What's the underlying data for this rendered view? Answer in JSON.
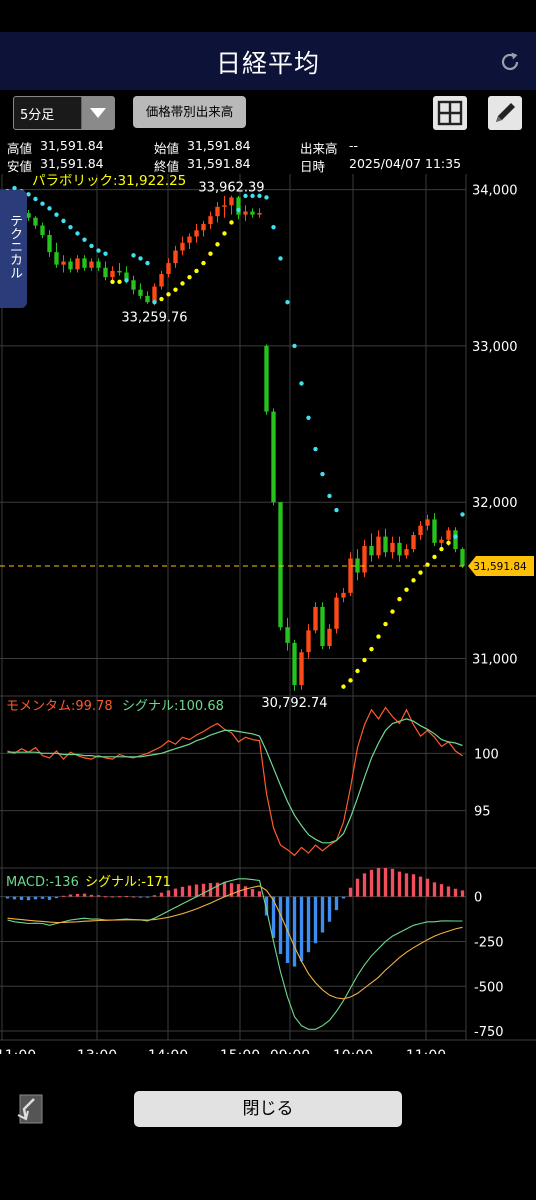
{
  "header": {
    "title": "日経平均"
  },
  "toolbar": {
    "interval": "5分足",
    "volume_button": "価格帯別出来高"
  },
  "info": {
    "high_label": "高値",
    "high_value": "31,591.84",
    "open_label": "始値",
    "open_value": "31,591.84",
    "volume_label": "出来高",
    "volume_value": "--",
    "low_label": "安値",
    "low_value": "31,591.84",
    "close_label": "終値",
    "close_value": "31,591.84",
    "time_label": "日時",
    "time_value": "2025/04/07 11:35"
  },
  "side_tab": "テクニカル",
  "footer": {
    "close_button": "閉じる"
  },
  "colors": {
    "up": "#ff4a18",
    "down": "#28c21e",
    "sar_up": "#ffff00",
    "sar_down": "#3fe0f0",
    "current": "#ffc107",
    "momentum": "#ff5a2a",
    "signal": "#6fd88f",
    "hist_up": "#f24e5e",
    "hist_down": "#3d8ef0"
  },
  "chart_data": {
    "type": "candlestick",
    "price": {
      "ylim": [
        30760,
        34100
      ],
      "yticks": [
        "34,000",
        "33,000",
        "32,000",
        "31,000"
      ],
      "ytick_values": [
        34000,
        33000,
        32000,
        31000
      ],
      "xlabels": [
        "11:00",
        "13:00",
        "14:00",
        "15:00",
        "09:00",
        "10:00",
        "11:00"
      ],
      "indicator_label": "パラボリック:31,922.25",
      "current_price": 31591.84,
      "current_label": "31,591.84",
      "annotations": [
        {
          "text": "33,962.39",
          "value": 33962.39,
          "index": 32
        },
        {
          "text": "33,259.76",
          "value": 33259.76,
          "index": 21
        },
        {
          "text": "30,792.74",
          "value": 30792.74,
          "index": 41
        }
      ],
      "candles": [
        {
          "o": 33960,
          "h": 34000,
          "l": 33930,
          "c": 33940,
          "sar": 33990
        },
        {
          "o": 33940,
          "h": 33960,
          "l": 33880,
          "c": 33890,
          "sar": 34010
        },
        {
          "o": 33890,
          "h": 33900,
          "l": 33830,
          "c": 33850,
          "sar": 33990
        },
        {
          "o": 33850,
          "h": 33870,
          "l": 33800,
          "c": 33820,
          "sar": 33970
        },
        {
          "o": 33820,
          "h": 33830,
          "l": 33750,
          "c": 33770,
          "sar": 33940
        },
        {
          "o": 33770,
          "h": 33790,
          "l": 33690,
          "c": 33710,
          "sar": 33910
        },
        {
          "o": 33710,
          "h": 33740,
          "l": 33570,
          "c": 33600,
          "sar": 33880
        },
        {
          "o": 33600,
          "h": 33660,
          "l": 33500,
          "c": 33520,
          "sar": 33840
        },
        {
          "o": 33520,
          "h": 33580,
          "l": 33470,
          "c": 33540,
          "sar": 33800
        },
        {
          "o": 33540,
          "h": 33560,
          "l": 33470,
          "c": 33490,
          "sar": 33760
        },
        {
          "o": 33490,
          "h": 33580,
          "l": 33470,
          "c": 33560,
          "sar": 33720
        },
        {
          "o": 33560,
          "h": 33580,
          "l": 33480,
          "c": 33500,
          "sar": 33680
        },
        {
          "o": 33500,
          "h": 33560,
          "l": 33480,
          "c": 33540,
          "sar": 33640
        },
        {
          "o": 33540,
          "h": 33560,
          "l": 33480,
          "c": 33500,
          "sar": 33610
        },
        {
          "o": 33500,
          "h": 33540,
          "l": 33420,
          "c": 33440,
          "sar": 33590
        },
        {
          "o": 33440,
          "h": 33510,
          "l": 33410,
          "c": 33480,
          "sar": 33410
        },
        {
          "o": 33480,
          "h": 33530,
          "l": 33450,
          "c": 33470,
          "sar": 33410
        },
        {
          "o": 33470,
          "h": 33510,
          "l": 33400,
          "c": 33420,
          "sar": 33420
        },
        {
          "o": 33420,
          "h": 33450,
          "l": 33330,
          "c": 33360,
          "sar": 33580
        },
        {
          "o": 33360,
          "h": 33400,
          "l": 33300,
          "c": 33320,
          "sar": 33560
        },
        {
          "o": 33320,
          "h": 33350,
          "l": 33270,
          "c": 33280,
          "sar": 33530
        },
        {
          "o": 33280,
          "h": 33400,
          "l": 33260,
          "c": 33380,
          "sar": 33280
        },
        {
          "o": 33380,
          "h": 33480,
          "l": 33360,
          "c": 33460,
          "sar": 33300
        },
        {
          "o": 33460,
          "h": 33560,
          "l": 33440,
          "c": 33530,
          "sar": 33330
        },
        {
          "o": 33530,
          "h": 33640,
          "l": 33500,
          "c": 33610,
          "sar": 33360
        },
        {
          "o": 33610,
          "h": 33700,
          "l": 33580,
          "c": 33660,
          "sar": 33400
        },
        {
          "o": 33660,
          "h": 33720,
          "l": 33620,
          "c": 33700,
          "sar": 33440
        },
        {
          "o": 33700,
          "h": 33780,
          "l": 33660,
          "c": 33740,
          "sar": 33480
        },
        {
          "o": 33740,
          "h": 33800,
          "l": 33700,
          "c": 33780,
          "sar": 33530
        },
        {
          "o": 33780,
          "h": 33860,
          "l": 33750,
          "c": 33830,
          "sar": 33590
        },
        {
          "o": 33830,
          "h": 33920,
          "l": 33790,
          "c": 33890,
          "sar": 33650
        },
        {
          "o": 33890,
          "h": 33960,
          "l": 33820,
          "c": 33900,
          "sar": 33720
        },
        {
          "o": 33900,
          "h": 33962,
          "l": 33840,
          "c": 33950,
          "sar": 33790
        },
        {
          "o": 33950,
          "h": 33960,
          "l": 33810,
          "c": 33840,
          "sar": 33870
        },
        {
          "o": 33840,
          "h": 33900,
          "l": 33800,
          "c": 33860,
          "sar": 33960
        },
        {
          "o": 33860,
          "h": 33880,
          "l": 33820,
          "c": 33840,
          "sar": 33960
        },
        {
          "o": 33840,
          "h": 33880,
          "l": 33820,
          "c": 33850,
          "sar": 33960
        },
        {
          "o": 33000,
          "h": 33010,
          "l": 32560,
          "c": 32580,
          "sar": 33950
        },
        {
          "o": 32580,
          "h": 32600,
          "l": 31980,
          "c": 32000,
          "sar": 33760
        },
        {
          "o": 32000,
          "h": 32000,
          "l": 31180,
          "c": 31200,
          "sar": 33560
        },
        {
          "o": 31200,
          "h": 31260,
          "l": 31050,
          "c": 31100,
          "sar": 33280
        },
        {
          "o": 31100,
          "h": 31120,
          "l": 30793,
          "c": 30830,
          "sar": 33000
        },
        {
          "o": 30830,
          "h": 31060,
          "l": 30800,
          "c": 31040,
          "sar": 32760
        },
        {
          "o": 31040,
          "h": 31220,
          "l": 31000,
          "c": 31180,
          "sar": 32540
        },
        {
          "o": 31180,
          "h": 31360,
          "l": 31160,
          "c": 31330,
          "sar": 32340
        },
        {
          "o": 31330,
          "h": 31360,
          "l": 31060,
          "c": 31080,
          "sar": 32180
        },
        {
          "o": 31080,
          "h": 31220,
          "l": 31060,
          "c": 31190,
          "sar": 32040
        },
        {
          "o": 31190,
          "h": 31420,
          "l": 31160,
          "c": 31390,
          "sar": 31950
        },
        {
          "o": 31390,
          "h": 31450,
          "l": 31360,
          "c": 31420,
          "sar": 30820
        },
        {
          "o": 31420,
          "h": 31680,
          "l": 31400,
          "c": 31640,
          "sar": 30860
        },
        {
          "o": 31640,
          "h": 31700,
          "l": 31500,
          "c": 31550,
          "sar": 30920
        },
        {
          "o": 31550,
          "h": 31760,
          "l": 31520,
          "c": 31720,
          "sar": 30990
        },
        {
          "o": 31720,
          "h": 31800,
          "l": 31620,
          "c": 31660,
          "sar": 31060
        },
        {
          "o": 31660,
          "h": 31820,
          "l": 31640,
          "c": 31780,
          "sar": 31140
        },
        {
          "o": 31780,
          "h": 31830,
          "l": 31650,
          "c": 31680,
          "sar": 31220
        },
        {
          "o": 31680,
          "h": 31780,
          "l": 31640,
          "c": 31740,
          "sar": 31300
        },
        {
          "o": 31740,
          "h": 31780,
          "l": 31620,
          "c": 31660,
          "sar": 31380
        },
        {
          "o": 31660,
          "h": 31730,
          "l": 31640,
          "c": 31700,
          "sar": 31440
        },
        {
          "o": 31700,
          "h": 31810,
          "l": 31680,
          "c": 31790,
          "sar": 31500
        },
        {
          "o": 31790,
          "h": 31880,
          "l": 31760,
          "c": 31850,
          "sar": 31550
        },
        {
          "o": 31850,
          "h": 31920,
          "l": 31820,
          "c": 31890,
          "sar": 31600
        },
        {
          "o": 31890,
          "h": 31930,
          "l": 31720,
          "c": 31740,
          "sar": 31650
        },
        {
          "o": 31740,
          "h": 31780,
          "l": 31700,
          "c": 31760,
          "sar": 31700
        },
        {
          "o": 31760,
          "h": 31840,
          "l": 31720,
          "c": 31820,
          "sar": 31740
        },
        {
          "o": 31820,
          "h": 31840,
          "l": 31680,
          "c": 31700,
          "sar": 31780
        },
        {
          "o": 31700,
          "h": 31710,
          "l": 31580,
          "c": 31592,
          "sar": 31922
        }
      ]
    },
    "momentum": {
      "label_a": "モメンタム:99.78",
      "label_b": "シグナル:100.68",
      "yticks": [
        "100",
        "95"
      ],
      "ytick_values": [
        100,
        95
      ],
      "ylim": [
        90,
        105
      ],
      "values": [
        100.2,
        100.0,
        100.4,
        100.1,
        100.5,
        99.8,
        99.6,
        100.2,
        99.5,
        100.1,
        99.8,
        99.6,
        99.5,
        99.8,
        99.6,
        99.5,
        99.9,
        99.7,
        99.6,
        99.8,
        100.0,
        100.3,
        100.6,
        101.1,
        100.8,
        101.4,
        101.2,
        101.6,
        101.9,
        102.3,
        102.6,
        102.1,
        101.8,
        101.0,
        101.4,
        101.2,
        101.1,
        96.5,
        93.5,
        92.0,
        91.6,
        91.1,
        91.8,
        91.3,
        92.0,
        91.5,
        92.0,
        92.4,
        94.0,
        97.0,
        100.5,
        102.5,
        103.8,
        103.0,
        104.0,
        103.2,
        102.6,
        103.8,
        102.5,
        101.5,
        102.0,
        101.4,
        100.6,
        101.0,
        100.2,
        99.78
      ],
      "signal": [
        100.1,
        100.1,
        100.1,
        100.1,
        100.1,
        100.0,
        100.0,
        100.0,
        99.9,
        99.9,
        99.9,
        99.8,
        99.8,
        99.7,
        99.7,
        99.7,
        99.7,
        99.7,
        99.7,
        99.7,
        99.8,
        99.9,
        100.0,
        100.2,
        100.4,
        100.6,
        100.8,
        101.1,
        101.3,
        101.6,
        101.8,
        102.0,
        102.0,
        101.9,
        101.8,
        101.7,
        101.5,
        100.2,
        98.7,
        97.2,
        95.8,
        94.6,
        93.7,
        92.9,
        92.5,
        92.2,
        92.2,
        92.4,
        93.0,
        94.4,
        96.1,
        97.9,
        99.6,
        100.9,
        102.0,
        102.6,
        102.8,
        103.0,
        102.8,
        102.4,
        102.1,
        101.7,
        101.2,
        101.0,
        100.9,
        100.68
      ]
    },
    "macd": {
      "label_a": "MACD:-136",
      "label_b": "シグナル:-171",
      "yticks": [
        "0",
        "-250",
        "-500",
        "-750"
      ],
      "ytick_values": [
        0,
        -250,
        -500,
        -750
      ],
      "ylim": [
        -800,
        160
      ],
      "macd": [
        -130,
        -140,
        -145,
        -150,
        -148,
        -150,
        -160,
        -150,
        -140,
        -130,
        -125,
        -120,
        -125,
        -125,
        -130,
        -130,
        -128,
        -125,
        -128,
        -130,
        -135,
        -120,
        -100,
        -80,
        -60,
        -40,
        -20,
        0,
        20,
        40,
        60,
        80,
        90,
        100,
        100,
        95,
        90,
        -70,
        -250,
        -420,
        -560,
        -670,
        -720,
        -740,
        -740,
        -720,
        -690,
        -640,
        -580,
        -510,
        -440,
        -380,
        -330,
        -290,
        -250,
        -220,
        -200,
        -180,
        -160,
        -150,
        -140,
        -140,
        -135,
        -135,
        -136,
        -136
      ],
      "signal": [
        -120,
        -124,
        -128,
        -132,
        -135,
        -138,
        -142,
        -144,
        -144,
        -142,
        -140,
        -137,
        -135,
        -133,
        -132,
        -131,
        -130,
        -129,
        -129,
        -129,
        -130,
        -128,
        -122,
        -115,
        -105,
        -95,
        -82,
        -68,
        -52,
        -36,
        -18,
        0,
        15,
        30,
        42,
        52,
        60,
        35,
        -20,
        -100,
        -190,
        -280,
        -360,
        -430,
        -480,
        -520,
        -550,
        -565,
        -570,
        -560,
        -540,
        -510,
        -480,
        -450,
        -410,
        -375,
        -340,
        -310,
        -285,
        -262,
        -240,
        -220,
        -205,
        -192,
        -180,
        -171
      ],
      "hist": [
        -10,
        -15,
        -18,
        -20,
        -15,
        -12,
        -18,
        -8,
        5,
        12,
        15,
        17,
        10,
        8,
        2,
        1,
        2,
        4,
        1,
        -1,
        -5,
        8,
        22,
        35,
        45,
        55,
        62,
        68,
        72,
        76,
        78,
        80,
        75,
        70,
        58,
        43,
        30,
        -105,
        -230,
        -320,
        -370,
        -390,
        -360,
        -310,
        -260,
        -200,
        -140,
        -75,
        -10,
        50,
        100,
        130,
        150,
        160,
        160,
        155,
        140,
        130,
        125,
        112,
        100,
        80,
        70,
        57,
        44,
        35
      ]
    }
  }
}
